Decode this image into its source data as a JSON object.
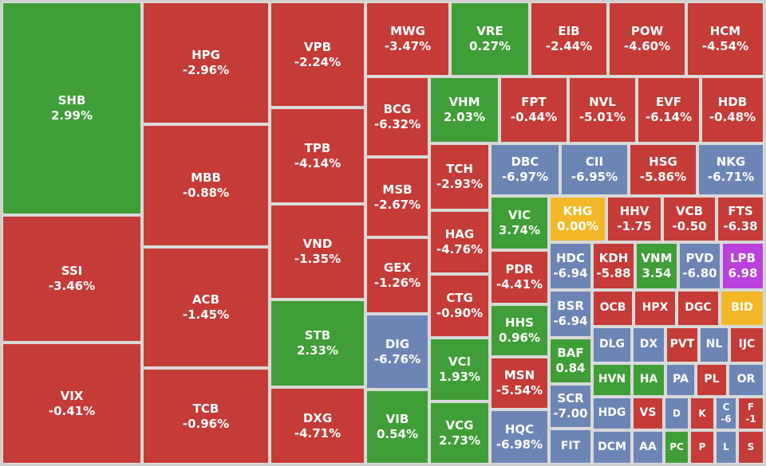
{
  "colors": {
    "down": "#c53b37",
    "up": "#3f9e37",
    "floor": "#6d85b4",
    "ref": "#f2b827",
    "ceiling": "#bb41dc"
  },
  "chart_data": {
    "type": "treemap",
    "tiles": [
      {
        "ticker": "SHB",
        "change": "2.99%",
        "status": "up"
      },
      {
        "ticker": "SSI",
        "change": "-3.46%",
        "status": "down"
      },
      {
        "ticker": "VIX",
        "change": "-0.41%",
        "status": "down"
      },
      {
        "ticker": "HPG",
        "change": "-2.96%",
        "status": "down"
      },
      {
        "ticker": "MBB",
        "change": "-0.88%",
        "status": "down"
      },
      {
        "ticker": "ACB",
        "change": "-1.45%",
        "status": "down"
      },
      {
        "ticker": "TCB",
        "change": "-0.96%",
        "status": "down"
      },
      {
        "ticker": "VPB",
        "change": "-2.24%",
        "status": "down"
      },
      {
        "ticker": "TPB",
        "change": "-4.14%",
        "status": "down"
      },
      {
        "ticker": "VND",
        "change": "-1.35%",
        "status": "down"
      },
      {
        "ticker": "STB",
        "change": "2.33%",
        "status": "up"
      },
      {
        "ticker": "DXG",
        "change": "-4.71%",
        "status": "down"
      },
      {
        "ticker": "MWG",
        "change": "-3.47%",
        "status": "down"
      },
      {
        "ticker": "VRE",
        "change": "0.27%",
        "status": "up"
      },
      {
        "ticker": "EIB",
        "change": "-2.44%",
        "status": "down"
      },
      {
        "ticker": "POW",
        "change": "-4.60%",
        "status": "down"
      },
      {
        "ticker": "HCM",
        "change": "-4.54%",
        "status": "down"
      },
      {
        "ticker": "BCG",
        "change": "-6.32%",
        "status": "down"
      },
      {
        "ticker": "MSB",
        "change": "-2.67%",
        "status": "down"
      },
      {
        "ticker": "GEX",
        "change": "-1.26%",
        "status": "down"
      },
      {
        "ticker": "DIG",
        "change": "-6.76%",
        "status": "floor"
      },
      {
        "ticker": "VIB",
        "change": "0.54%",
        "status": "up"
      },
      {
        "ticker": "VHM",
        "change": "2.03%",
        "status": "up"
      },
      {
        "ticker": "TCH",
        "change": "-2.93%",
        "status": "down"
      },
      {
        "ticker": "HAG",
        "change": "-4.76%",
        "status": "down"
      },
      {
        "ticker": "CTG",
        "change": "-0.90%",
        "status": "down"
      },
      {
        "ticker": "VCI",
        "change": "1.93%",
        "status": "up"
      },
      {
        "ticker": "VCG",
        "change": "2.73%",
        "status": "up"
      },
      {
        "ticker": "FPT",
        "change": "-0.44%",
        "status": "down"
      },
      {
        "ticker": "NVL",
        "change": "-5.01%",
        "status": "down"
      },
      {
        "ticker": "EVF",
        "change": "-6.14%",
        "status": "down"
      },
      {
        "ticker": "HDB",
        "change": "-0.48%",
        "status": "down"
      },
      {
        "ticker": "DBC",
        "change": "-6.97%",
        "status": "floor"
      },
      {
        "ticker": "CII",
        "change": "-6.95%",
        "status": "floor"
      },
      {
        "ticker": "HSG",
        "change": "-5.86%",
        "status": "down"
      },
      {
        "ticker": "NKG",
        "change": "-6.71%",
        "status": "floor"
      },
      {
        "ticker": "VIC",
        "change": "3.74%",
        "status": "up"
      },
      {
        "ticker": "KHG",
        "change": "0.00%",
        "status": "ref"
      },
      {
        "ticker": "HHV",
        "change": "-1.75",
        "status": "down"
      },
      {
        "ticker": "VCB",
        "change": "-0.50",
        "status": "down"
      },
      {
        "ticker": "FTS",
        "change": "-6.38",
        "status": "down"
      },
      {
        "ticker": "PDR",
        "change": "-4.41%",
        "status": "down"
      },
      {
        "ticker": "HDC",
        "change": "-6.94",
        "status": "floor"
      },
      {
        "ticker": "KDH",
        "change": "-5.88",
        "status": "down"
      },
      {
        "ticker": "VNM",
        "change": "3.54",
        "status": "up"
      },
      {
        "ticker": "PVD",
        "change": "-6.80",
        "status": "floor"
      },
      {
        "ticker": "LPB",
        "change": "6.98",
        "status": "ceiling"
      },
      {
        "ticker": "HHS",
        "change": "0.96%",
        "status": "up"
      },
      {
        "ticker": "BSR",
        "change": "-6.94",
        "status": "floor"
      },
      {
        "ticker": "OCB",
        "change": "",
        "status": "down"
      },
      {
        "ticker": "HPX",
        "change": "",
        "status": "down"
      },
      {
        "ticker": "DGC",
        "change": "",
        "status": "down"
      },
      {
        "ticker": "BID",
        "change": "",
        "status": "ref"
      },
      {
        "ticker": "MSN",
        "change": "-5.54%",
        "status": "down"
      },
      {
        "ticker": "BAF",
        "change": "0.84",
        "status": "up"
      },
      {
        "ticker": "DLG",
        "change": "",
        "status": "floor"
      },
      {
        "ticker": "DX",
        "change": "",
        "status": "floor"
      },
      {
        "ticker": "PVT",
        "change": "",
        "status": "down"
      },
      {
        "ticker": "NL",
        "change": "",
        "status": "floor"
      },
      {
        "ticker": "IJC",
        "change": "",
        "status": "down"
      },
      {
        "ticker": "HVN",
        "change": "",
        "status": "up"
      },
      {
        "ticker": "HA",
        "change": "",
        "status": "up"
      },
      {
        "ticker": "PA",
        "change": "",
        "status": "floor"
      },
      {
        "ticker": "PL",
        "change": "",
        "status": "down"
      },
      {
        "ticker": "OR",
        "change": "",
        "status": "floor"
      },
      {
        "ticker": "SCR",
        "change": "-7.00",
        "status": "floor"
      },
      {
        "ticker": "HDG",
        "change": "",
        "status": "floor"
      },
      {
        "ticker": "VS",
        "change": "",
        "status": "down"
      },
      {
        "ticker": "D",
        "change": "",
        "status": "floor"
      },
      {
        "ticker": "K",
        "change": "",
        "status": "down"
      },
      {
        "ticker": "C",
        "change": "-6",
        "status": "floor"
      },
      {
        "ticker": "F",
        "change": "-1",
        "status": "down"
      },
      {
        "ticker": "HQC",
        "change": "-6.98%",
        "status": "floor"
      },
      {
        "ticker": "FIT",
        "change": "",
        "status": "floor"
      },
      {
        "ticker": "DCM",
        "change": "",
        "status": "floor"
      },
      {
        "ticker": "AA",
        "change": "",
        "status": "floor"
      },
      {
        "ticker": "PC",
        "change": "",
        "status": "up"
      },
      {
        "ticker": "P",
        "change": "",
        "status": "down"
      },
      {
        "ticker": "L",
        "change": "",
        "status": "floor"
      },
      {
        "ticker": "S",
        "change": "",
        "status": "down"
      }
    ]
  }
}
